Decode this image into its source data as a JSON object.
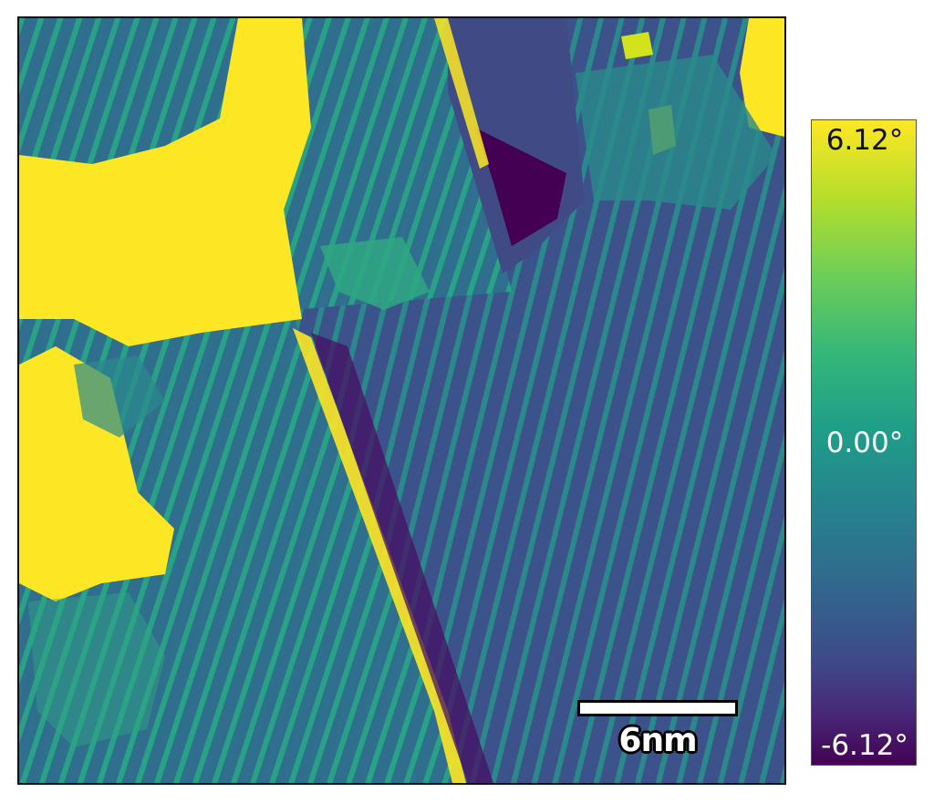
{
  "image": {
    "description_colormap": "viridis",
    "scale_bar_label": "6nm"
  },
  "colorbar": {
    "max_label": "6.12°",
    "mid_label": "0.00°",
    "min_label": "-6.12°"
  },
  "colors": {
    "yellow": "#fde725",
    "teal": "#1f9e89",
    "blue": "#3b528b",
    "purple": "#440154"
  }
}
